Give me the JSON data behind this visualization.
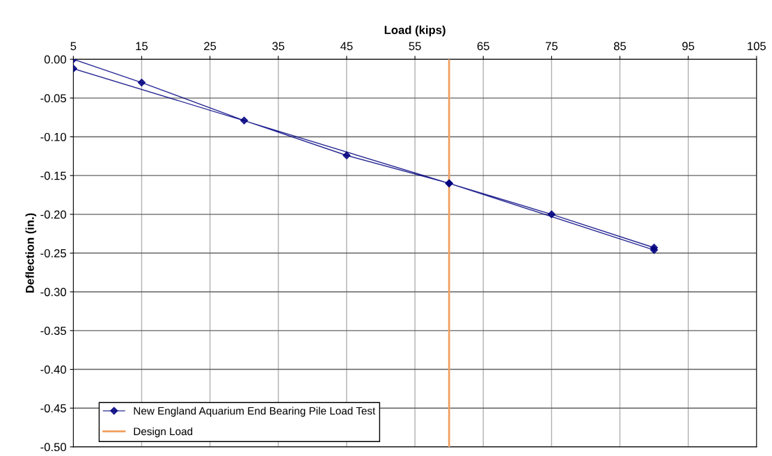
{
  "chart_data": {
    "type": "line",
    "xlabel": "Load (kips)",
    "ylabel": "Deflection (in.)",
    "series": [
      {
        "name": "New England Aquarium End Bearing Pile Load Test",
        "color": "#000080",
        "x": [
          5,
          15,
          30,
          45,
          60,
          75,
          90,
          90,
          60,
          5
        ],
        "values": [
          0.0,
          -0.03,
          -0.079,
          -0.124,
          -0.16,
          -0.2,
          -0.243,
          -0.246,
          -0.16,
          -0.012
        ]
      },
      {
        "name": "Design Load",
        "color": "#f0a060",
        "marker": "none",
        "x": [
          60,
          60
        ],
        "values": [
          0.0,
          -0.5
        ]
      }
    ],
    "xlim": [
      5,
      105
    ],
    "xticks": [
      5,
      15,
      25,
      35,
      45,
      55,
      65,
      75,
      85,
      95,
      105
    ],
    "ylim": [
      -0.5,
      0.0
    ],
    "yticks": [
      {
        "value": 0.0,
        "label": "0.00"
      },
      {
        "value": -0.05,
        "label": "-0.05"
      },
      {
        "value": -0.1,
        "label": "-0.10"
      },
      {
        "value": -0.15,
        "label": "-0.15"
      },
      {
        "value": -0.2,
        "label": "-0.20"
      },
      {
        "value": -0.25,
        "label": "-0.25"
      },
      {
        "value": -0.3,
        "label": "-0.30"
      },
      {
        "value": -0.35,
        "label": "-0.35"
      },
      {
        "value": -0.4,
        "label": "-0.40"
      },
      {
        "value": -0.45,
        "label": "-0.45"
      },
      {
        "value": -0.5,
        "label": "-0.50"
      }
    ],
    "grid": true,
    "legend": "bottom left",
    "marker": "diamond",
    "line_style": "solid"
  }
}
